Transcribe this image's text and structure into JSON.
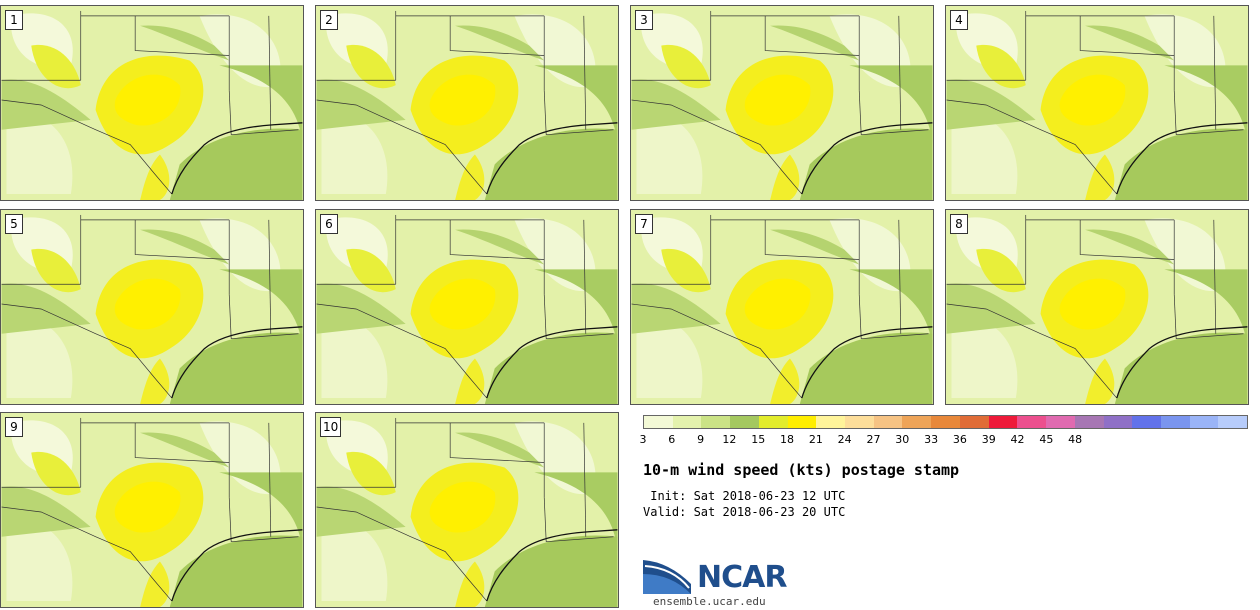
{
  "panels": [
    {
      "label": "1"
    },
    {
      "label": "2"
    },
    {
      "label": "3"
    },
    {
      "label": "4"
    },
    {
      "label": "5"
    },
    {
      "label": "6"
    },
    {
      "label": "7"
    },
    {
      "label": "8"
    },
    {
      "label": "9"
    },
    {
      "label": "10"
    }
  ],
  "colorbar": {
    "colors": [
      "#f3f9d6",
      "#e4f2ad",
      "#cbe386",
      "#a4c85f",
      "#e2ec2c",
      "#ffee00",
      "#fff49a",
      "#fdde9a",
      "#f6c384",
      "#eea458",
      "#e8883a",
      "#e06c37",
      "#ee1a3a",
      "#ec4f8e",
      "#e06ab0",
      "#a776b4",
      "#8f70c7",
      "#6272ea",
      "#7a95ef",
      "#9ab4f7",
      "#b7ccfb"
    ],
    "ticks": [
      "3",
      "6",
      "9",
      "12",
      "15",
      "18",
      "21",
      "24",
      "27",
      "30",
      "33",
      "36",
      "39",
      "42",
      "45",
      "48"
    ]
  },
  "title": "10-m wind speed (kts) postage stamp",
  "init": " Init: Sat 2018-06-23 12 UTC",
  "valid": "Valid: Sat 2018-06-23 20 UTC",
  "logo": {
    "text": "NCAR",
    "color": "#1f4e8c",
    "icon": "ncar-arc-logo-icon"
  },
  "url": "ensemble.ucar.edu"
}
